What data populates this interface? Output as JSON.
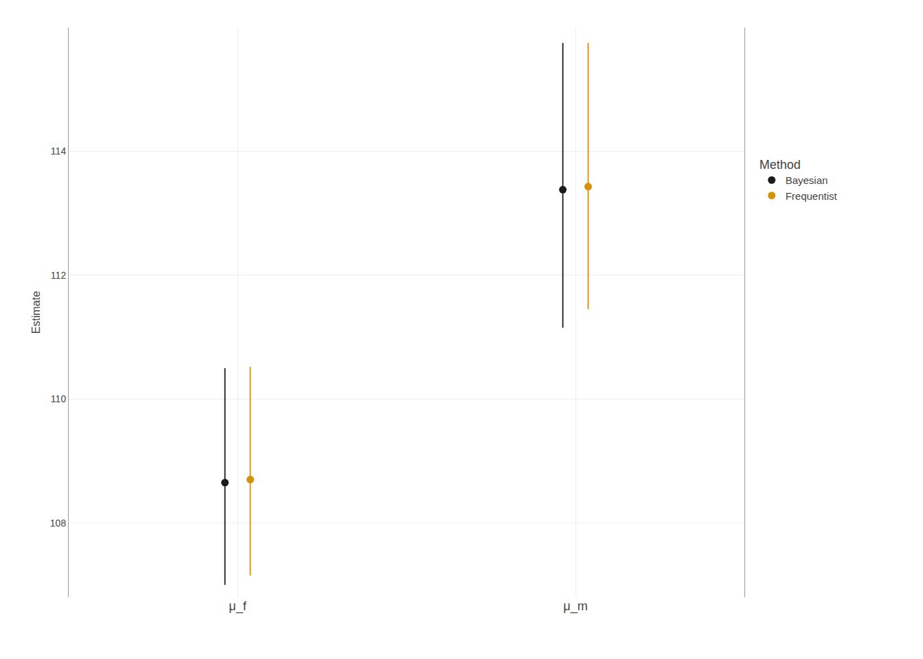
{
  "chart_data": {
    "type": "scatter",
    "categories": [
      "μ_f",
      "μ_m"
    ],
    "ylabel": "Estimate",
    "ylim": [
      106.8,
      116.0
    ],
    "yticks": [
      108,
      110,
      112,
      114
    ],
    "grid": true,
    "legend": "right",
    "legend_title": "Method",
    "series": [
      {
        "name": "Bayesian",
        "color": "#1a1a1a",
        "values": [
          108.65,
          113.38
        ],
        "ci_lower": [
          107.0,
          111.15
        ],
        "ci_upper": [
          110.5,
          115.75
        ]
      },
      {
        "name": "Frequentist",
        "color": "#D4920A",
        "values": [
          108.7,
          113.43
        ],
        "ci_lower": [
          107.15,
          111.45
        ],
        "ci_upper": [
          110.52,
          115.75
        ]
      }
    ]
  }
}
